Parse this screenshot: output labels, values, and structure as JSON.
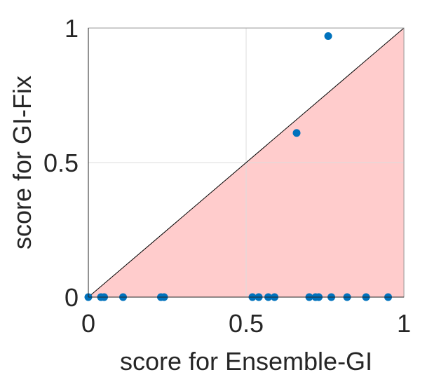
{
  "chart_data": {
    "type": "scatter",
    "title": "",
    "xlabel": "score for Ensemble-GI",
    "ylabel": "score for GI-Fix",
    "xlim": [
      0,
      1
    ],
    "ylim": [
      0,
      1
    ],
    "x_ticks": [
      "0",
      "0.5",
      "1"
    ],
    "y_ticks": [
      "0",
      "0.5",
      "1"
    ],
    "grid": true,
    "marker_color": "#0072BD",
    "region_color": "#FFCCCC",
    "diagonal_color": "#000000",
    "shaded_region": "below diagonal y = x",
    "points": [
      {
        "x": 0.0,
        "y": 0.0
      },
      {
        "x": 0.04,
        "y": 0.0
      },
      {
        "x": 0.05,
        "y": 0.0
      },
      {
        "x": 0.11,
        "y": 0.0
      },
      {
        "x": 0.23,
        "y": 0.0
      },
      {
        "x": 0.24,
        "y": 0.0
      },
      {
        "x": 0.52,
        "y": 0.0
      },
      {
        "x": 0.54,
        "y": 0.0
      },
      {
        "x": 0.57,
        "y": 0.0
      },
      {
        "x": 0.59,
        "y": 0.0
      },
      {
        "x": 0.7,
        "y": 0.0
      },
      {
        "x": 0.72,
        "y": 0.0
      },
      {
        "x": 0.73,
        "y": 0.0
      },
      {
        "x": 0.77,
        "y": 0.0
      },
      {
        "x": 0.82,
        "y": 0.0
      },
      {
        "x": 0.88,
        "y": 0.0
      },
      {
        "x": 0.95,
        "y": 0.0
      },
      {
        "x": 0.66,
        "y": 0.61
      },
      {
        "x": 0.76,
        "y": 0.97
      }
    ]
  }
}
